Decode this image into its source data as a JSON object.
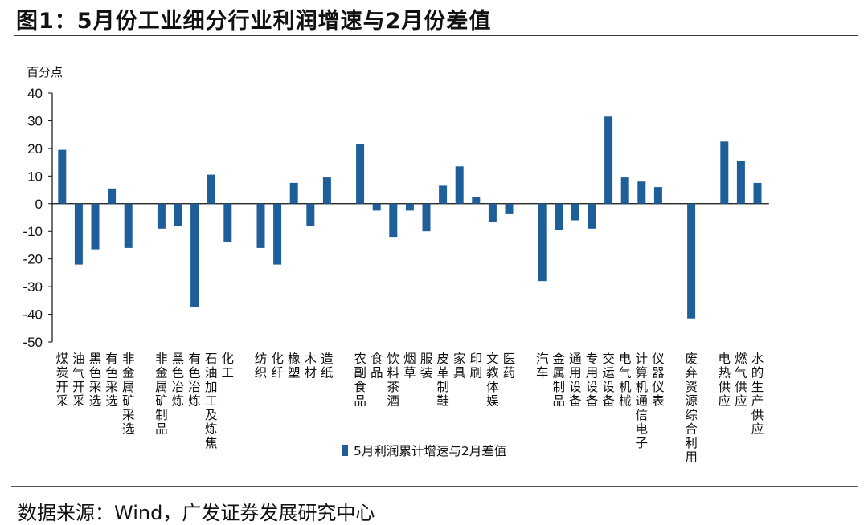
{
  "title": "图1：5月份工业细分行业利润增速与2月份差值",
  "source": "数据来源：Wind，广发证券发展研究中心",
  "colors": {
    "bar": "#1f5f99",
    "axis": "#111111"
  },
  "chart_data": {
    "type": "bar",
    "ylabel": "百分点",
    "ylim": [
      -50,
      40
    ],
    "yticks": [
      40,
      30,
      20,
      10,
      0,
      -10,
      -20,
      -30,
      -40,
      -50
    ],
    "legend": "5月利润累计增速与2月差值",
    "legend_position": "bottom-center",
    "categories": [
      {
        "label": "煤炭开采",
        "value": 19.5
      },
      {
        "label": "油气开采",
        "value": -22
      },
      {
        "label": "黑色采选",
        "value": -16.5
      },
      {
        "label": "有色采选",
        "value": 5.5
      },
      {
        "label": "非金属矿采选",
        "value": -16
      },
      {
        "label": "",
        "value": null
      },
      {
        "label": "非金属矿制品",
        "value": -9
      },
      {
        "label": "黑色冶炼",
        "value": -8
      },
      {
        "label": "有色冶炼",
        "value": -37.5
      },
      {
        "label": "石油加工及炼焦",
        "value": 10.5
      },
      {
        "label": "化工",
        "value": -14
      },
      {
        "label": "",
        "value": null
      },
      {
        "label": "纺织",
        "value": -16
      },
      {
        "label": "化纤",
        "value": -22
      },
      {
        "label": "橡塑",
        "value": 7.5
      },
      {
        "label": "木材",
        "value": -8
      },
      {
        "label": "造纸",
        "value": 9.5
      },
      {
        "label": "",
        "value": null
      },
      {
        "label": "农副食品",
        "value": 21.5
      },
      {
        "label": "食品",
        "value": -2.5
      },
      {
        "label": "饮料茶酒",
        "value": -12
      },
      {
        "label": "烟草",
        "value": -2.5
      },
      {
        "label": "服装",
        "value": -10
      },
      {
        "label": "皮革制鞋",
        "value": 6.5
      },
      {
        "label": "家具",
        "value": 13.5
      },
      {
        "label": "印刷",
        "value": 2.5
      },
      {
        "label": "文教体娱",
        "value": -6.5
      },
      {
        "label": "医药",
        "value": -3.5
      },
      {
        "label": "",
        "value": null
      },
      {
        "label": "汽车",
        "value": -28
      },
      {
        "label": "金属制品",
        "value": -9.5
      },
      {
        "label": "通用设备",
        "value": -6
      },
      {
        "label": "专用设备",
        "value": -9
      },
      {
        "label": "交运设备",
        "value": 31.5
      },
      {
        "label": "电气机械",
        "value": 9.5
      },
      {
        "label": "计算机通信电子",
        "value": 8
      },
      {
        "label": "仪器仪表",
        "value": 6
      },
      {
        "label": "",
        "value": null
      },
      {
        "label": "废弃资源综合利用",
        "value": -41.5
      },
      {
        "label": "",
        "value": null
      },
      {
        "label": "电热供应",
        "value": 22.5
      },
      {
        "label": "燃气供应",
        "value": 15.5
      },
      {
        "label": "水的生产供应",
        "value": 7.5
      }
    ]
  }
}
